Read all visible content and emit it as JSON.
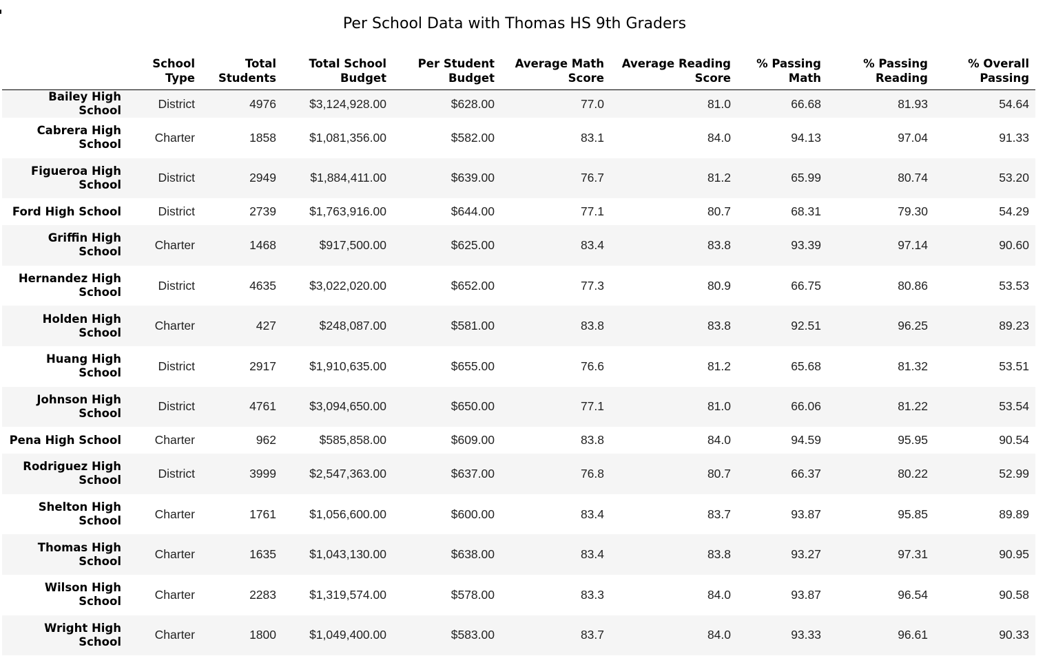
{
  "title": "Per School Data with Thomas HS 9th Graders",
  "columns": [
    "",
    "School Type",
    "Total Students",
    "Total School Budget",
    "Per Student Budget",
    "Average Math Score",
    "Average Reading Score",
    "% Passing Math",
    "% Passing Reading",
    "% Overall Passing"
  ],
  "rows": [
    [
      "Bailey High School",
      "District",
      "4976",
      "$3,124,928.00",
      "$628.00",
      "77.0",
      "81.0",
      "66.68",
      "81.93",
      "54.64"
    ],
    [
      "Cabrera High School",
      "Charter",
      "1858",
      "$1,081,356.00",
      "$582.00",
      "83.1",
      "84.0",
      "94.13",
      "97.04",
      "91.33"
    ],
    [
      "Figueroa High School",
      "District",
      "2949",
      "$1,884,411.00",
      "$639.00",
      "76.7",
      "81.2",
      "65.99",
      "80.74",
      "53.20"
    ],
    [
      "Ford High School",
      "District",
      "2739",
      "$1,763,916.00",
      "$644.00",
      "77.1",
      "80.7",
      "68.31",
      "79.30",
      "54.29"
    ],
    [
      "Griffin High School",
      "Charter",
      "1468",
      "$917,500.00",
      "$625.00",
      "83.4",
      "83.8",
      "93.39",
      "97.14",
      "90.60"
    ],
    [
      "Hernandez High School",
      "District",
      "4635",
      "$3,022,020.00",
      "$652.00",
      "77.3",
      "80.9",
      "66.75",
      "80.86",
      "53.53"
    ],
    [
      "Holden High School",
      "Charter",
      "427",
      "$248,087.00",
      "$581.00",
      "83.8",
      "83.8",
      "92.51",
      "96.25",
      "89.23"
    ],
    [
      "Huang High School",
      "District",
      "2917",
      "$1,910,635.00",
      "$655.00",
      "76.6",
      "81.2",
      "65.68",
      "81.32",
      "53.51"
    ],
    [
      "Johnson High School",
      "District",
      "4761",
      "$3,094,650.00",
      "$650.00",
      "77.1",
      "81.0",
      "66.06",
      "81.22",
      "53.54"
    ],
    [
      "Pena High School",
      "Charter",
      "962",
      "$585,858.00",
      "$609.00",
      "83.8",
      "84.0",
      "94.59",
      "95.95",
      "90.54"
    ],
    [
      "Rodriguez High School",
      "District",
      "3999",
      "$2,547,363.00",
      "$637.00",
      "76.8",
      "80.7",
      "66.37",
      "80.22",
      "52.99"
    ],
    [
      "Shelton High School",
      "Charter",
      "1761",
      "$1,056,600.00",
      "$600.00",
      "83.4",
      "83.7",
      "93.87",
      "95.85",
      "89.89"
    ],
    [
      "Thomas High School",
      "Charter",
      "1635",
      "$1,043,130.00",
      "$638.00",
      "83.4",
      "83.8",
      "93.27",
      "97.31",
      "90.95"
    ],
    [
      "Wilson High School",
      "Charter",
      "2283",
      "$1,319,574.00",
      "$578.00",
      "83.3",
      "84.0",
      "93.87",
      "96.54",
      "90.58"
    ],
    [
      "Wright High School",
      "Charter",
      "1800",
      "$1,049,400.00",
      "$583.00",
      "83.7",
      "84.0",
      "93.33",
      "96.61",
      "90.33"
    ]
  ]
}
